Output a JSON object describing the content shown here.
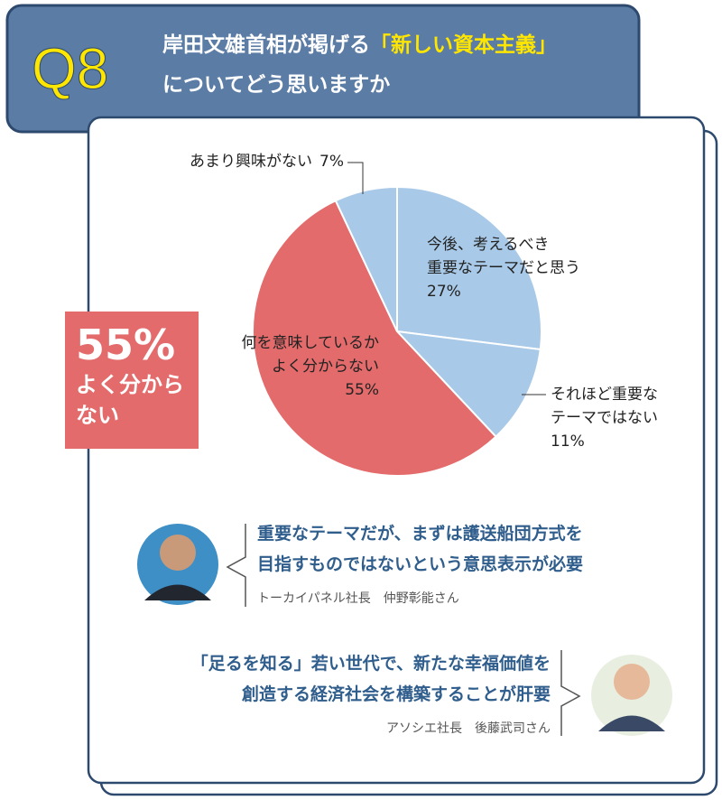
{
  "header": {
    "number": "Q8",
    "title_parts": [
      "岸田文雄首相が掲げる",
      "「新しい資本主義」",
      "\nについてどう思いますか"
    ]
  },
  "chart_data": {
    "type": "pie",
    "categories": [
      "今後、考えるべき\n重要なテーマだと思う",
      "それほど重要な\nテーマではない",
      "何を意味しているか\nよく分からない",
      "あまり興味がない"
    ],
    "values": [
      27,
      11,
      55,
      7
    ],
    "value_labels": [
      "27%",
      "11%",
      "55%",
      "7%"
    ],
    "colors": [
      "#a8c9e7",
      "#a8c9e7",
      "#e46b6b",
      "#a8c9e7"
    ]
  },
  "callout": {
    "label": "55%",
    "text": "よく分から\nない"
  },
  "comments": [
    {
      "quote": "重要なテーマだが、まずは護送船団方式を\n目指すものではないという意思表示が必要",
      "speaker": "トーカイパネル社長　仲野彰能さん"
    },
    {
      "quote": "「足るを知る」若い世代で、新たな幸福価値を\n創造する経済社会を構築することが肝要",
      "speaker": "アソシエ社長　後藤武司さん"
    }
  ]
}
